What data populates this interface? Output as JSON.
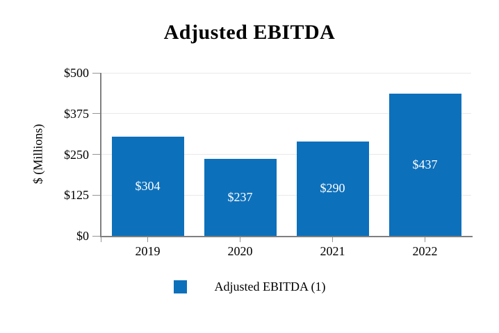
{
  "chart_data": {
    "type": "bar",
    "title": "Adjusted EBITDA",
    "ylabel": "$ (Millions)",
    "xlabel": "",
    "categories": [
      "2019",
      "2020",
      "2021",
      "2022"
    ],
    "values": [
      304,
      237,
      290,
      437
    ],
    "value_labels": [
      "$304",
      "$237",
      "$290",
      "$437"
    ],
    "ylim": [
      0,
      500
    ],
    "yticks": [
      {
        "value": 0,
        "label": "$0"
      },
      {
        "value": 125,
        "label": "$125"
      },
      {
        "value": 250,
        "label": "$250"
      },
      {
        "value": 375,
        "label": "$375"
      },
      {
        "value": 500,
        "label": "$500"
      }
    ],
    "grid": true,
    "legend_position": "bottom",
    "bar_color": "#0d70bb",
    "value_label_color": "#ffffff",
    "legend": {
      "label": "Adjusted EBITDA (1)",
      "swatch_color": "#0d70bb"
    }
  }
}
